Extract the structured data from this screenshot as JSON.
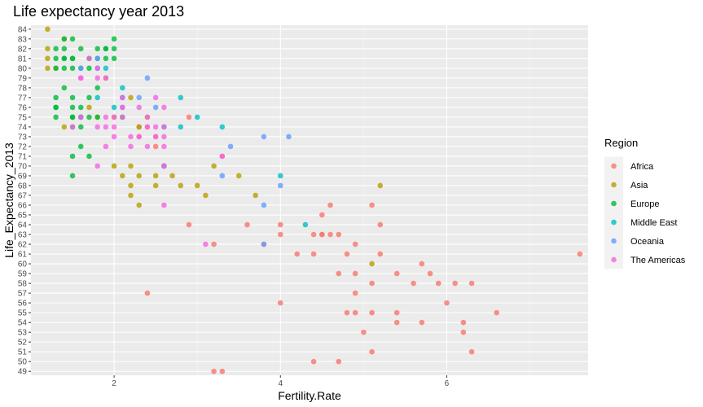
{
  "chart_data": {
    "type": "scatter",
    "title": "Life expectancy year 2013",
    "xlabel": "Fertility.Rate",
    "ylabel": "Life_Expectancy_2013",
    "xlim": [
      1.0,
      7.7
    ],
    "ylim": [
      48.6,
      84.4
    ],
    "x_ticks": [
      2,
      4,
      6
    ],
    "y_ticks": [
      49,
      50,
      51,
      52,
      53,
      54,
      55,
      56,
      57,
      58,
      59,
      60,
      61,
      62,
      63,
      64,
      65,
      66,
      67,
      68,
      69,
      70,
      71,
      72,
      73,
      74,
      75,
      76,
      77,
      78,
      79,
      80,
      81,
      82,
      83,
      84
    ],
    "grid": true,
    "legend": {
      "title": "Region",
      "position": "right"
    },
    "series": [
      {
        "name": "Africa",
        "color": "#F8766D",
        "points": [
          [
            2.9,
            75
          ],
          [
            2.3,
            74
          ],
          [
            2.4,
            74
          ],
          [
            2.5,
            73
          ],
          [
            2.3,
            73
          ],
          [
            2.5,
            72
          ],
          [
            3.3,
            71
          ],
          [
            2.6,
            70
          ],
          [
            4.6,
            66
          ],
          [
            5.1,
            66
          ],
          [
            4.5,
            65
          ],
          [
            2.9,
            64
          ],
          [
            3.6,
            64
          ],
          [
            4.0,
            64
          ],
          [
            5.2,
            64
          ],
          [
            4.0,
            63
          ],
          [
            4.4,
            63
          ],
          [
            4.5,
            63
          ],
          [
            4.5,
            63
          ],
          [
            4.6,
            63
          ],
          [
            4.7,
            63
          ],
          [
            3.2,
            62
          ],
          [
            3.8,
            62
          ],
          [
            4.9,
            62
          ],
          [
            4.2,
            61
          ],
          [
            4.4,
            61
          ],
          [
            4.8,
            61
          ],
          [
            5.2,
            61
          ],
          [
            7.6,
            61
          ],
          [
            5.7,
            60
          ],
          [
            4.7,
            59
          ],
          [
            4.9,
            59
          ],
          [
            5.4,
            59
          ],
          [
            5.8,
            59
          ],
          [
            5.1,
            58
          ],
          [
            5.6,
            58
          ],
          [
            5.9,
            58
          ],
          [
            6.1,
            58
          ],
          [
            6.3,
            58
          ],
          [
            2.4,
            57
          ],
          [
            4.9,
            57
          ],
          [
            4.0,
            56
          ],
          [
            6.0,
            56
          ],
          [
            4.8,
            55
          ],
          [
            4.9,
            55
          ],
          [
            5.1,
            55
          ],
          [
            5.4,
            55
          ],
          [
            6.6,
            55
          ],
          [
            5.4,
            54
          ],
          [
            5.7,
            54
          ],
          [
            6.2,
            54
          ],
          [
            5.0,
            53
          ],
          [
            6.2,
            53
          ],
          [
            5.1,
            51
          ],
          [
            6.3,
            51
          ],
          [
            4.4,
            50
          ],
          [
            4.7,
            50
          ],
          [
            3.2,
            49
          ],
          [
            3.3,
            49
          ]
        ]
      },
      {
        "name": "Asia",
        "color": "#B79F00",
        "points": [
          [
            1.2,
            84
          ],
          [
            1.4,
            83
          ],
          [
            1.2,
            82
          ],
          [
            1.2,
            81
          ],
          [
            1.2,
            80
          ],
          [
            1.3,
            80
          ],
          [
            1.9,
            79
          ],
          [
            2.2,
            77
          ],
          [
            1.7,
            76
          ],
          [
            1.6,
            75
          ],
          [
            1.8,
            75
          ],
          [
            2.0,
            75
          ],
          [
            2.4,
            75
          ],
          [
            1.4,
            74
          ],
          [
            2.3,
            74
          ],
          [
            2.0,
            70
          ],
          [
            2.2,
            70
          ],
          [
            2.6,
            70
          ],
          [
            2.6,
            70
          ],
          [
            3.2,
            70
          ],
          [
            2.1,
            69
          ],
          [
            2.3,
            69
          ],
          [
            2.5,
            69
          ],
          [
            2.7,
            69
          ],
          [
            3.5,
            69
          ],
          [
            2.2,
            68
          ],
          [
            2.5,
            68
          ],
          [
            2.8,
            68
          ],
          [
            3.0,
            68
          ],
          [
            5.2,
            68
          ],
          [
            2.2,
            67
          ],
          [
            3.1,
            67
          ],
          [
            3.7,
            67
          ],
          [
            2.3,
            66
          ],
          [
            5.1,
            60
          ]
        ]
      },
      {
        "name": "Europe",
        "color": "#00BA38",
        "points": [
          [
            1.4,
            83
          ],
          [
            1.5,
            83
          ],
          [
            2.0,
            83
          ],
          [
            1.3,
            82
          ],
          [
            1.4,
            82
          ],
          [
            1.6,
            82
          ],
          [
            1.8,
            82
          ],
          [
            1.9,
            82
          ],
          [
            1.9,
            82
          ],
          [
            2.0,
            82
          ],
          [
            1.3,
            81
          ],
          [
            1.4,
            81
          ],
          [
            1.4,
            81
          ],
          [
            1.5,
            81
          ],
          [
            1.5,
            81
          ],
          [
            1.7,
            81
          ],
          [
            1.8,
            81
          ],
          [
            1.9,
            81
          ],
          [
            2.0,
            81
          ],
          [
            1.3,
            80
          ],
          [
            1.4,
            80
          ],
          [
            1.5,
            80
          ],
          [
            1.6,
            80
          ],
          [
            1.7,
            80
          ],
          [
            1.8,
            80
          ],
          [
            1.4,
            78
          ],
          [
            1.8,
            78
          ],
          [
            1.3,
            77
          ],
          [
            1.5,
            77
          ],
          [
            1.7,
            77
          ],
          [
            1.3,
            76
          ],
          [
            1.3,
            76
          ],
          [
            1.5,
            76
          ],
          [
            1.6,
            76
          ],
          [
            1.3,
            75
          ],
          [
            1.5,
            75
          ],
          [
            1.5,
            75
          ],
          [
            1.6,
            75
          ],
          [
            1.7,
            75
          ],
          [
            1.8,
            75
          ],
          [
            2.1,
            75
          ],
          [
            1.5,
            74
          ],
          [
            1.6,
            74
          ],
          [
            1.6,
            72
          ],
          [
            1.5,
            71
          ],
          [
            1.7,
            71
          ],
          [
            1.5,
            69
          ]
        ]
      },
      {
        "name": "Middle East",
        "color": "#00BFC4",
        "points": [
          [
            1.9,
            80
          ],
          [
            2.1,
            78
          ],
          [
            1.8,
            77
          ],
          [
            2.1,
            77
          ],
          [
            2.8,
            77
          ],
          [
            2.0,
            76
          ],
          [
            1.6,
            75
          ],
          [
            3.0,
            75
          ],
          [
            2.6,
            74
          ],
          [
            2.8,
            74
          ],
          [
            3.3,
            74
          ],
          [
            2.6,
            70
          ],
          [
            4.0,
            69
          ],
          [
            4.3,
            64
          ]
        ]
      },
      {
        "name": "Oceania",
        "color": "#619CFF",
        "points": [
          [
            1.8,
            81
          ],
          [
            1.6,
            80
          ],
          [
            1.8,
            80
          ],
          [
            2.4,
            79
          ],
          [
            2.1,
            77
          ],
          [
            2.3,
            77
          ],
          [
            2.1,
            76
          ],
          [
            2.5,
            76
          ],
          [
            3.8,
            73
          ],
          [
            4.1,
            73
          ],
          [
            3.4,
            72
          ],
          [
            2.6,
            70
          ],
          [
            3.3,
            69
          ],
          [
            4.0,
            68
          ],
          [
            3.8,
            66
          ],
          [
            3.8,
            62
          ]
        ]
      },
      {
        "name": "The Americas",
        "color": "#F564E3",
        "points": [
          [
            1.7,
            81
          ],
          [
            1.6,
            79
          ],
          [
            1.6,
            79
          ],
          [
            1.9,
            79
          ],
          [
            1.8,
            79
          ],
          [
            1.8,
            80
          ],
          [
            2.1,
            77
          ],
          [
            2.5,
            77
          ],
          [
            2.1,
            76
          ],
          [
            2.3,
            76
          ],
          [
            2.6,
            76
          ],
          [
            2.4,
            75
          ],
          [
            1.9,
            75
          ],
          [
            2.0,
            75
          ],
          [
            2.1,
            75
          ],
          [
            1.6,
            75
          ],
          [
            1.8,
            74
          ],
          [
            1.9,
            74
          ],
          [
            2.0,
            74
          ],
          [
            2.4,
            74
          ],
          [
            2.5,
            74
          ],
          [
            2.6,
            74
          ],
          [
            1.5,
            74
          ],
          [
            2.0,
            73
          ],
          [
            2.2,
            73
          ],
          [
            2.3,
            73
          ],
          [
            2.5,
            73
          ],
          [
            2.6,
            73
          ],
          [
            2.4,
            72
          ],
          [
            2.6,
            72
          ],
          [
            1.9,
            72
          ],
          [
            2.2,
            72
          ],
          [
            3.3,
            71
          ],
          [
            1.8,
            70
          ],
          [
            2.6,
            70
          ],
          [
            2.6,
            66
          ],
          [
            3.1,
            62
          ]
        ]
      }
    ]
  }
}
